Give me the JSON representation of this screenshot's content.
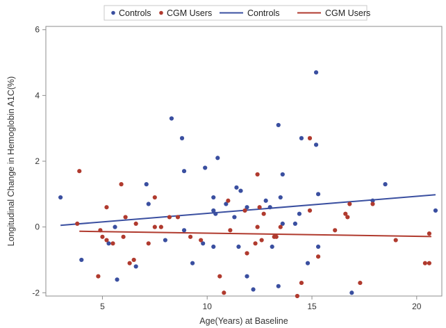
{
  "chart_data": {
    "type": "scatter",
    "xlabel": "Age(Years) at Baseline",
    "ylabel": "Longitudinal Change in Hemoglobin A1C(%)",
    "xlim": [
      2.3,
      21.2
    ],
    "ylim": [
      -2.1,
      6.1
    ],
    "xticks": [
      5,
      10,
      15,
      20
    ],
    "yticks": [
      -2,
      0,
      2,
      4,
      6
    ],
    "grid": false,
    "legend_position": "top",
    "legend": [
      {
        "label": "Controls",
        "kind": "marker",
        "color": "#3a4fa0"
      },
      {
        "label": "CGM Users",
        "kind": "marker",
        "color": "#b03a2e"
      },
      {
        "label": "Controls",
        "kind": "line",
        "color": "#3a4fa0"
      },
      {
        "label": "CGM Users",
        "kind": "line",
        "color": "#b03a2e"
      }
    ],
    "series": [
      {
        "name": "Controls",
        "color": "#3a4fa0",
        "points": [
          [
            3,
            0.9
          ],
          [
            4,
            -1
          ],
          [
            5.3,
            -0.5
          ],
          [
            5.6,
            0
          ],
          [
            5.7,
            -1.6
          ],
          [
            6.6,
            -1.2
          ],
          [
            7.1,
            1.3
          ],
          [
            7.2,
            0.7
          ],
          [
            8,
            -0.4
          ],
          [
            8.3,
            3.3
          ],
          [
            8.8,
            2.7
          ],
          [
            8.9,
            1.7
          ],
          [
            8.9,
            -0.1
          ],
          [
            9.3,
            -1.1
          ],
          [
            9.8,
            -0.5
          ],
          [
            9.9,
            1.8
          ],
          [
            10.3,
            0.9
          ],
          [
            10.3,
            0.5
          ],
          [
            10.3,
            -0.6
          ],
          [
            10.4,
            0.4
          ],
          [
            10.5,
            2.1
          ],
          [
            10.9,
            0.7
          ],
          [
            11.3,
            0.3
          ],
          [
            11.4,
            1.2
          ],
          [
            11.5,
            -0.6
          ],
          [
            11.6,
            1.1
          ],
          [
            11.9,
            0.6
          ],
          [
            11.9,
            -1.5
          ],
          [
            12.2,
            -1.9
          ],
          [
            12.8,
            0.8
          ],
          [
            13,
            0.6
          ],
          [
            13.1,
            -0.6
          ],
          [
            13.4,
            -1.8
          ],
          [
            13.4,
            3.1
          ],
          [
            13.5,
            0.9
          ],
          [
            13.6,
            1.6
          ],
          [
            13.6,
            0.1
          ],
          [
            14.2,
            0.1
          ],
          [
            14.4,
            0.4
          ],
          [
            14.5,
            2.7
          ],
          [
            14.8,
            -1.1
          ],
          [
            15.2,
            4.7
          ],
          [
            15.2,
            2.5
          ],
          [
            15.3,
            1
          ],
          [
            15.3,
            -0.6
          ],
          [
            16.9,
            -2
          ],
          [
            17.9,
            0.8
          ],
          [
            18.5,
            1.3
          ],
          [
            20.9,
            0.5
          ]
        ],
        "fit": {
          "x": [
            3,
            20.9
          ],
          "y": [
            0.05,
            0.98
          ]
        }
      },
      {
        "name": "CGM Users",
        "color": "#b03a2e",
        "points": [
          [
            3.8,
            0.1
          ],
          [
            3.9,
            1.7
          ],
          [
            4.8,
            -1.5
          ],
          [
            4.9,
            -0.1
          ],
          [
            5,
            -0.3
          ],
          [
            5.2,
            0.6
          ],
          [
            5.2,
            -0.4
          ],
          [
            5.5,
            -0.5
          ],
          [
            5.9,
            1.3
          ],
          [
            6,
            -0.3
          ],
          [
            6.1,
            0.3
          ],
          [
            6.3,
            -1.1
          ],
          [
            6.5,
            -1.0
          ],
          [
            6.6,
            0.1
          ],
          [
            7.2,
            -0.5
          ],
          [
            7.5,
            0.9
          ],
          [
            7.5,
            0
          ],
          [
            7.8,
            0
          ],
          [
            8.2,
            0.3
          ],
          [
            8.6,
            0.3
          ],
          [
            9.2,
            -0.3
          ],
          [
            9.7,
            -0.4
          ],
          [
            10.6,
            -1.5
          ],
          [
            10.8,
            -2
          ],
          [
            11,
            0.8
          ],
          [
            11.1,
            -0.1
          ],
          [
            11.8,
            0.5
          ],
          [
            11.9,
            -0.8
          ],
          [
            12.3,
            -0.5
          ],
          [
            12.4,
            0
          ],
          [
            12.4,
            1.6
          ],
          [
            12.5,
            0.6
          ],
          [
            12.6,
            -0.4
          ],
          [
            12.7,
            0.4
          ],
          [
            13.2,
            -0.3
          ],
          [
            13.3,
            -0.3
          ],
          [
            13.5,
            0
          ],
          [
            14.3,
            -2.1
          ],
          [
            14.5,
            -1.7
          ],
          [
            14.9,
            0.5
          ],
          [
            14.9,
            2.7
          ],
          [
            15.3,
            -0.9
          ],
          [
            16.1,
            -0.1
          ],
          [
            16.6,
            0.4
          ],
          [
            16.7,
            0.3
          ],
          [
            16.8,
            0.7
          ],
          [
            17.3,
            -1.7
          ],
          [
            17.9,
            0.7
          ],
          [
            19.0,
            -0.4
          ],
          [
            20.4,
            -1.1
          ],
          [
            20.6,
            -1.1
          ],
          [
            20.6,
            -0.2
          ]
        ],
        "fit": {
          "x": [
            3.9,
            20.7
          ],
          "y": [
            -0.13,
            -0.29
          ]
        }
      }
    ]
  }
}
